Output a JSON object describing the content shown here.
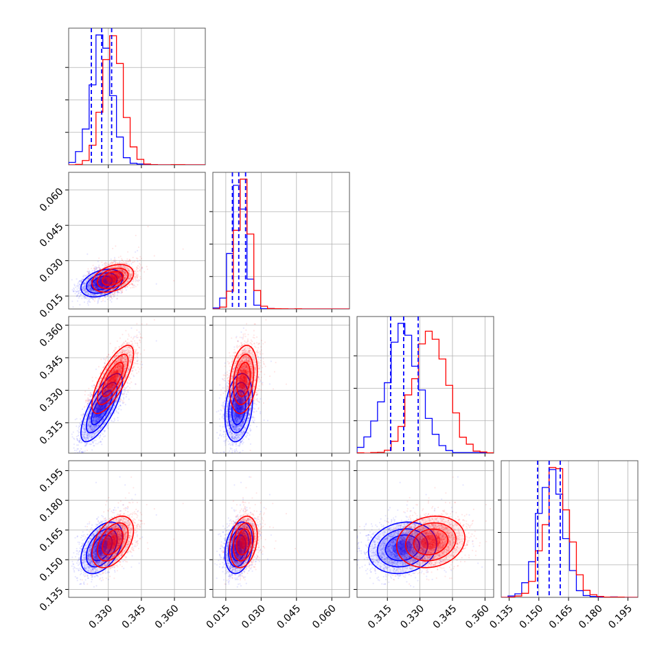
{
  "chart_data": {
    "type": "corner",
    "title": "",
    "grid": true,
    "parameters": [
      "",
      "",
      "",
      ""
    ],
    "series": [
      {
        "color": "#0000ff",
        "means": [
          0.327,
          0.0205,
          0.322,
          0.156
        ],
        "stds": [
          0.0045,
          0.0028,
          0.0075,
          0.0062
        ],
        "correlations": {
          "1-0": 0.35,
          "2-0": 0.75,
          "2-1": 0.25,
          "3-0": 0.45,
          "3-1": 0.25,
          "3-2": 0.15
        }
      },
      {
        "color": "#ff0000",
        "means": [
          0.332,
          0.0225,
          0.335,
          0.159
        ],
        "stds": [
          0.0045,
          0.0028,
          0.0075,
          0.0062
        ],
        "correlations": {
          "1-0": 0.35,
          "2-0": 0.75,
          "2-1": 0.25,
          "3-0": 0.45,
          "3-1": 0.25,
          "3-2": 0.15
        }
      }
    ],
    "quantile_lines": {
      "color": "#0000ff",
      "style": "dashed",
      "values": [
        [
          0.3223,
          0.327,
          0.3315
        ],
        [
          0.0178,
          0.0205,
          0.0234
        ],
        [
          0.3165,
          0.3225,
          0.3292
        ],
        [
          0.1494,
          0.1552,
          0.1608
        ]
      ]
    },
    "axes": [
      {
        "lim": [
          0.312,
          0.374
        ],
        "ticks": [
          0.33,
          0.345,
          0.36
        ],
        "tick_labels": [
          "0.330",
          "0.345",
          "0.360"
        ]
      },
      {
        "lim": [
          0.0095,
          0.0675
        ],
        "ticks": [
          0.015,
          0.03,
          0.045,
          0.06
        ],
        "tick_labels": [
          "0.015",
          "0.030",
          "0.045",
          "0.060"
        ]
      },
      {
        "lim": [
          0.301,
          0.364
        ],
        "ticks": [
          0.315,
          0.33,
          0.345,
          0.36
        ],
        "tick_labels": [
          "0.315",
          "0.330",
          "0.345",
          "0.360"
        ]
      },
      {
        "lim": [
          0.131,
          0.2
        ],
        "ticks": [
          0.135,
          0.15,
          0.165,
          0.18,
          0.195
        ],
        "tick_labels": [
          "0.135",
          "0.150",
          "0.165",
          "0.180",
          "0.195"
        ]
      }
    ]
  }
}
